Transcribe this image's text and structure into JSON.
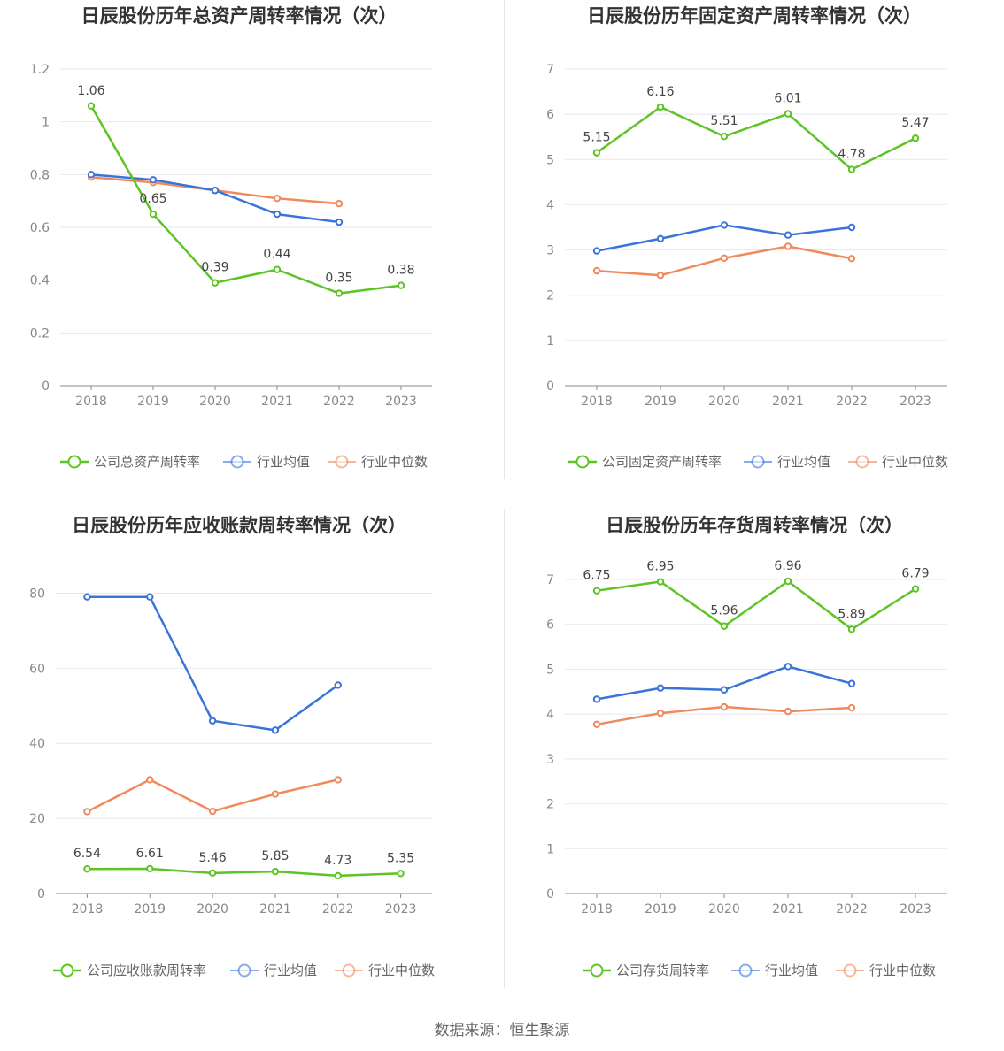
{
  "footer": "数据来源：恒生聚源",
  "colors": {
    "company": "#5cc424",
    "avg": "#3a74db",
    "median": "#f08a5d",
    "grid": "#e8e8ee",
    "axis": "#888888"
  },
  "chart_data": [
    {
      "type": "line",
      "title": "日辰股份历年总资产周转率情况（次）",
      "categories": [
        "2018",
        "2019",
        "2020",
        "2021",
        "2022",
        "2023"
      ],
      "ylim": [
        0,
        1.2
      ],
      "yticks": [
        "0",
        "0.2",
        "0.4",
        "0.6",
        "0.8",
        "1",
        "1.2"
      ],
      "grid": true,
      "legend_position": "bottom",
      "series": [
        {
          "name": "公司总资产周转率",
          "values": [
            1.06,
            0.65,
            0.39,
            0.44,
            0.35,
            0.38
          ],
          "labels": [
            "1.06",
            "0.65",
            "0.39",
            "0.44",
            "0.35",
            "0.38"
          ]
        },
        {
          "name": "行业均值",
          "values": [
            0.8,
            0.78,
            0.74,
            0.65,
            0.62,
            null
          ]
        },
        {
          "name": "行业中位数",
          "values": [
            0.79,
            0.77,
            0.74,
            0.71,
            0.69,
            null
          ]
        }
      ]
    },
    {
      "type": "line",
      "title": "日辰股份历年固定资产周转率情况（次）",
      "categories": [
        "2018",
        "2019",
        "2020",
        "2021",
        "2022",
        "2023"
      ],
      "ylim": [
        0,
        7
      ],
      "yticks": [
        "0",
        "1",
        "2",
        "3",
        "4",
        "5",
        "6",
        "7"
      ],
      "grid": true,
      "legend_position": "bottom",
      "series": [
        {
          "name": "公司固定资产周转率",
          "values": [
            5.15,
            6.16,
            5.51,
            6.01,
            4.78,
            5.47
          ],
          "labels": [
            "5.15",
            "6.16",
            "5.51",
            "6.01",
            "4.78",
            "5.47"
          ]
        },
        {
          "name": "行业均值",
          "values": [
            2.98,
            3.25,
            3.55,
            3.33,
            3.5,
            null
          ]
        },
        {
          "name": "行业中位数",
          "values": [
            2.54,
            2.44,
            2.82,
            3.08,
            2.81,
            null
          ]
        }
      ]
    },
    {
      "type": "line",
      "title": "日辰股份历年应收账款周转率情况（次）",
      "categories": [
        "2018",
        "2019",
        "2020",
        "2021",
        "2022",
        "2023"
      ],
      "ylim": [
        0,
        90
      ],
      "yticks": [
        "0",
        "20",
        "40",
        "60",
        "80"
      ],
      "grid": true,
      "legend_position": "bottom",
      "series": [
        {
          "name": "公司应收账款周转率",
          "values": [
            6.54,
            6.61,
            5.46,
            5.85,
            4.73,
            5.35
          ],
          "labels": [
            "6.54",
            "6.61",
            "5.46",
            "5.85",
            "4.73",
            "5.35"
          ]
        },
        {
          "name": "行业均值",
          "values": [
            79.0,
            79.0,
            46.0,
            43.5,
            55.5,
            null
          ]
        },
        {
          "name": "行业中位数",
          "values": [
            21.8,
            30.3,
            21.9,
            26.5,
            30.3,
            null
          ]
        }
      ]
    },
    {
      "type": "line",
      "title": "日辰股份历年存货周转率情况（次）",
      "categories": [
        "2018",
        "2019",
        "2020",
        "2021",
        "2022",
        "2023"
      ],
      "ylim": [
        0,
        7
      ],
      "yticks": [
        "0",
        "1",
        "2",
        "3",
        "4",
        "5",
        "6",
        "7"
      ],
      "grid": true,
      "legend_position": "bottom",
      "series": [
        {
          "name": "公司存货周转率",
          "values": [
            6.75,
            6.95,
            5.96,
            6.96,
            5.89,
            6.79
          ],
          "labels": [
            "6.75",
            "6.95",
            "5.96",
            "6.96",
            "5.89",
            "6.79"
          ]
        },
        {
          "name": "行业均值",
          "values": [
            4.33,
            4.58,
            4.54,
            5.06,
            4.68,
            null
          ]
        },
        {
          "name": "行业中位数",
          "values": [
            3.77,
            4.02,
            4.16,
            4.06,
            4.14,
            null
          ]
        }
      ]
    }
  ]
}
